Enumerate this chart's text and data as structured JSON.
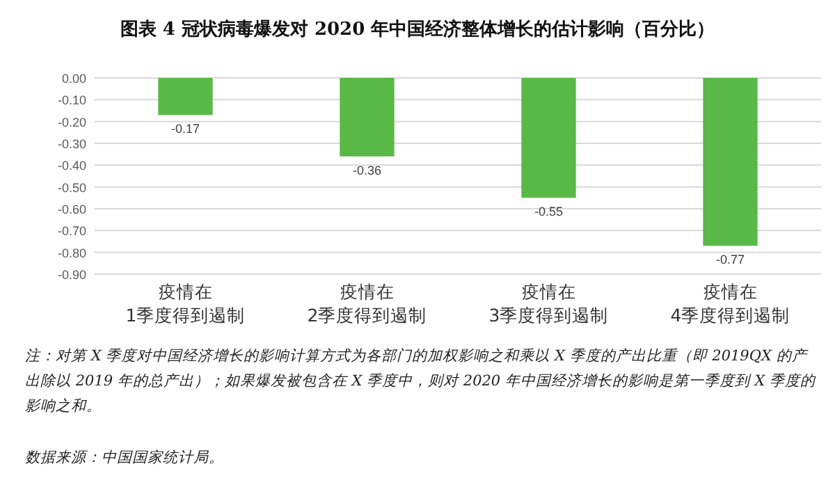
{
  "chart_data": {
    "type": "bar",
    "title": "图表 4 冠状病毒爆发对 2020 年中国经济整体增长的估计影响（百分比）",
    "categories": [
      "疫情在\n1季度得到遏制",
      "疫情在\n2季度得到遏制",
      "疫情在\n3季度得到遏制",
      "疫情在\n4季度得到遏制"
    ],
    "values": [
      -0.17,
      -0.36,
      -0.55,
      -0.77
    ],
    "color": "#58b947",
    "ylim": [
      -0.9,
      0
    ],
    "yticks": [
      {
        "value": 0,
        "label": "0.00"
      },
      {
        "value": -0.1,
        "label": "-0.10"
      },
      {
        "value": -0.2,
        "label": "-0.20"
      },
      {
        "value": -0.3,
        "label": "-0.30"
      },
      {
        "value": -0.4,
        "label": "-0.40"
      },
      {
        "value": -0.5,
        "label": "-0.50"
      },
      {
        "value": -0.6,
        "label": "-0.60"
      },
      {
        "value": -0.7,
        "label": "-0.70"
      },
      {
        "value": -0.8,
        "label": "-0.80"
      },
      {
        "value": -0.9,
        "label": "-0.90"
      }
    ],
    "grid": "y",
    "data_labels": true,
    "annotations": [
      "注：对第 X 季度对中国经济增长的影响计算方式为各部门的加权影响之和乘以 X 季度的产出比重（即 2019QX 的产出除以 2019 年的总产出）；如果爆发被包含在 X 季度中，则对 2020 年中国经济增长的影响是第一季度到 X 季度的影响之和。",
      "数据来源：中国国家统计局。"
    ]
  }
}
